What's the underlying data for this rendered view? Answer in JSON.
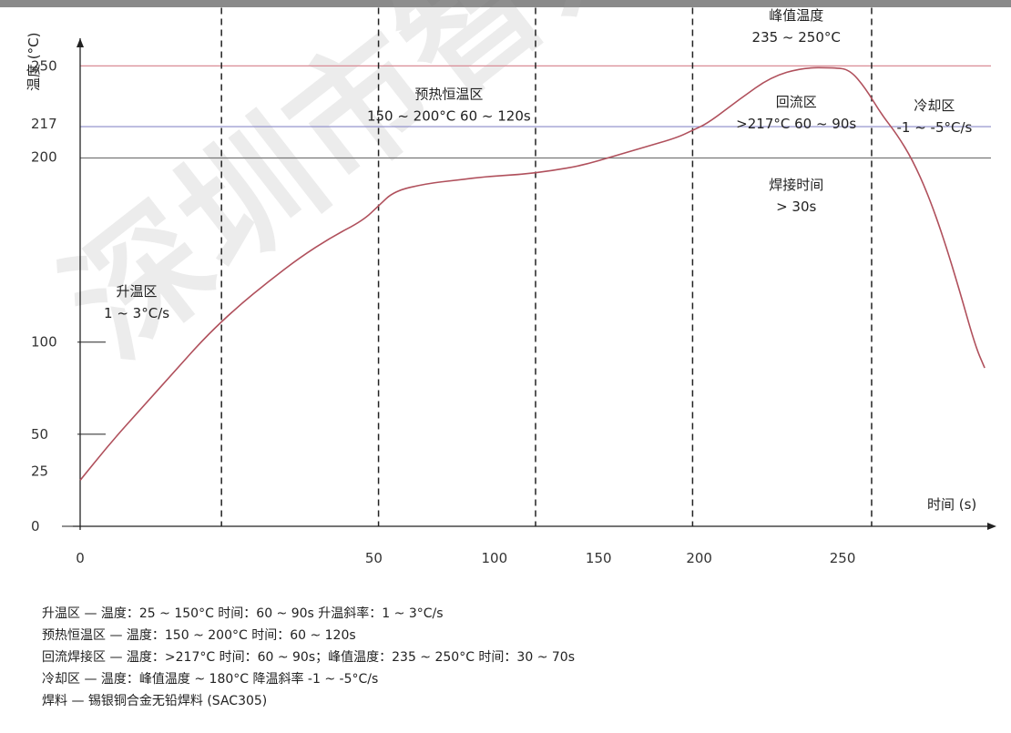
{
  "watermark": "深圳市智兴微科技",
  "chart_data": {
    "type": "line",
    "xlabel": "时间 (s)",
    "ylabel": "温度 (°C)",
    "xlim": [
      0,
      290
    ],
    "ylim": [
      0,
      265
    ],
    "x_ticks": [
      0,
      50,
      100,
      150,
      200,
      250
    ],
    "y_ticks": [
      0,
      25,
      50,
      100,
      200,
      217,
      250
    ],
    "reference_lines": [
      {
        "y": 250,
        "color": "#d98c96"
      },
      {
        "y": 217,
        "color": "#8a8ac8"
      },
      {
        "y": 200,
        "color": "#777777"
      }
    ],
    "zone_dividers_x": [
      45,
      95,
      145,
      195,
      252
    ],
    "series": [
      {
        "color": "#b0505c",
        "x": [
          0,
          10,
          20,
          30,
          40,
          50,
          60,
          70,
          80,
          90,
          95,
          100,
          110,
          120,
          130,
          140,
          150,
          160,
          170,
          180,
          190,
          195,
          200,
          210,
          220,
          230,
          240,
          245,
          250,
          255,
          260,
          265,
          270,
          275,
          280,
          285,
          288
        ],
        "y": [
          25,
          46,
          65,
          84,
          103,
          119,
          133,
          146,
          157,
          166,
          174,
          182,
          186,
          188,
          190,
          191,
          193,
          196,
          201,
          206,
          211,
          215,
          219,
          232,
          244,
          249,
          249,
          248,
          238,
          224,
          213,
          199,
          180,
          156,
          128,
          98,
          86
        ]
      }
    ],
    "annotations": [
      {
        "lines": [
          "升温区",
          "1 ~ 3°C/s"
        ],
        "x": 18,
        "y": 125
      },
      {
        "lines": [
          "预热恒温区",
          "150 ~ 200°C  60 ~ 120s"
        ],
        "x": 100,
        "y": 232
      },
      {
        "lines": [
          "峰值温度",
          "235 ~ 250°C"
        ],
        "x": 228,
        "y": 275
      },
      {
        "lines": [
          "回流区",
          ">217°C  60 ~ 90s"
        ],
        "x": 228,
        "y": 228
      },
      {
        "lines": [
          "冷却区",
          "-1 ~ -5°C/s"
        ],
        "x": 272,
        "y": 226
      },
      {
        "lines": [
          "焊接时间",
          "> 30s"
        ],
        "x": 228,
        "y": 183
      }
    ]
  },
  "notes": [
    "升温区 — 温度：25 ~ 150°C 时间：60 ~ 90s 升温斜率：1 ~ 3°C/s",
    "预热恒温区 — 温度：150 ~ 200°C 时间：60 ~ 120s",
    "回流焊接区 — 温度：>217°C 时间：60 ~ 90s；峰值温度：235 ~ 250°C 时间：30 ~ 70s",
    "冷却区 — 温度：峰值温度 ~ 180°C 降温斜率 -1 ~ -5°C/s",
    "焊料 — 锡银铜合金无铅焊料 (SAC305)"
  ]
}
